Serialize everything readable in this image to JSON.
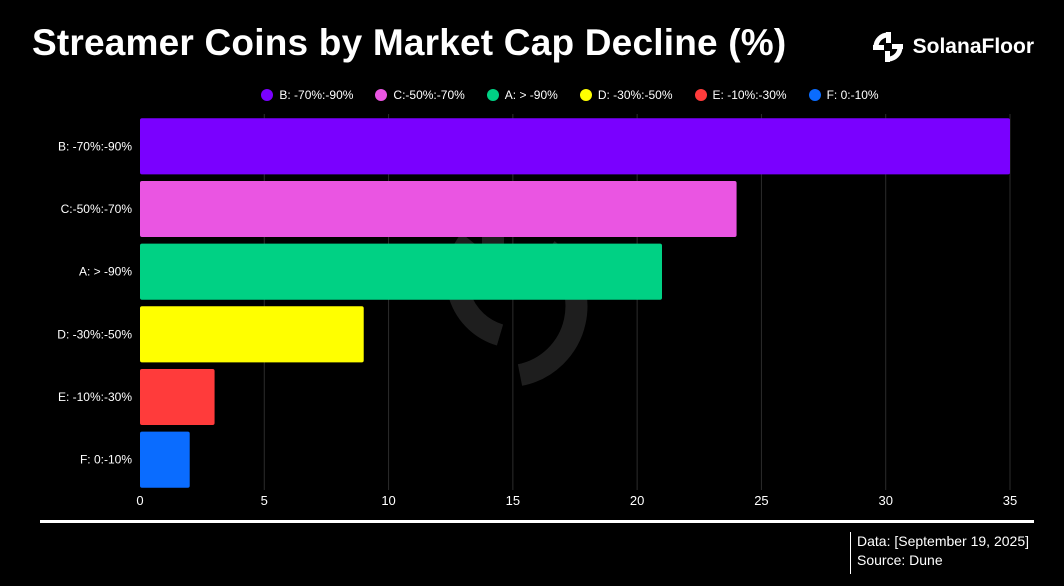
{
  "header": {
    "title": "Streamer Coins by Market Cap Decline (%)",
    "brand_name": "SolanaFloor"
  },
  "chart_data": {
    "type": "bar",
    "orientation": "horizontal",
    "title": "Streamer Coins by Market Cap Decline (%)",
    "xlabel": "",
    "ylabel": "",
    "xlim": [
      0,
      35
    ],
    "x_ticks": [
      0,
      5,
      10,
      15,
      20,
      25,
      30,
      35
    ],
    "grid": true,
    "legend_position": "top-center",
    "categories": [
      "B: -70%:-90%",
      "C:-50%:-70%",
      "A: > -90%",
      "D: -30%:-50%",
      "E: -10%:-30%",
      "F: 0:-10%"
    ],
    "values": [
      35,
      24,
      21,
      9,
      3,
      2
    ],
    "colors": [
      "#7a00ff",
      "#ea55e2",
      "#00d184",
      "#ffff00",
      "#ff3b3b",
      "#0a6cff"
    ]
  },
  "legend": {
    "items": [
      {
        "label": "B: -70%:-90%",
        "color": "#7a00ff"
      },
      {
        "label": "C:-50%:-70%",
        "color": "#ea55e2"
      },
      {
        "label": "A: > -90%",
        "color": "#00d184"
      },
      {
        "label": "D: -30%:-50%",
        "color": "#ffff00"
      },
      {
        "label": "E: -10%:-30%",
        "color": "#ff3b3b"
      },
      {
        "label": "F: 0:-10%",
        "color": "#0a6cff"
      }
    ]
  },
  "footer": {
    "data_line": "Data: [September 19, 2025]",
    "source_line": "Source: Dune"
  }
}
